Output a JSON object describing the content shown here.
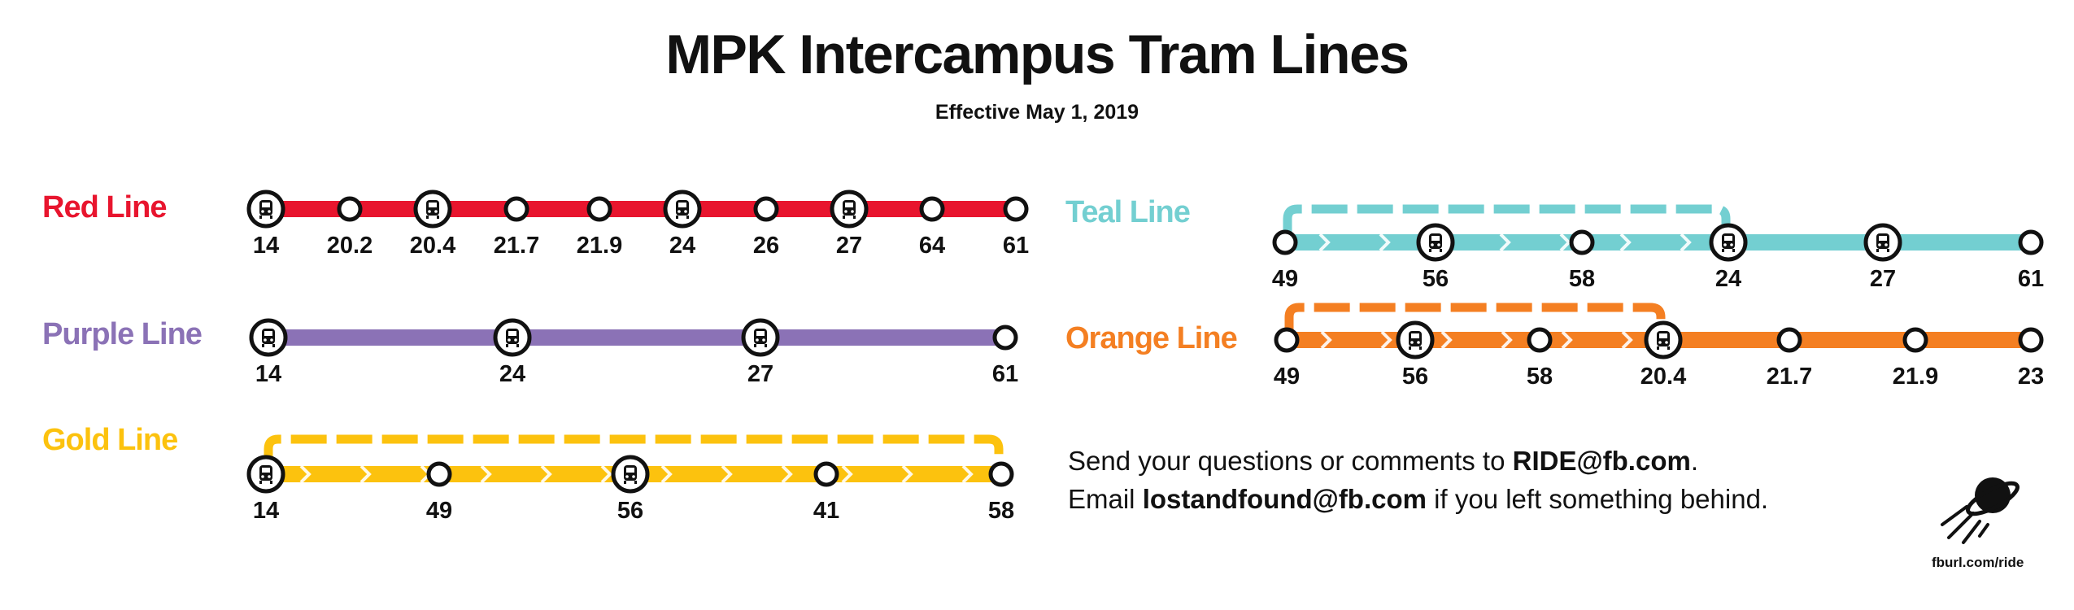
{
  "header": {
    "title": "MPK Intercampus Tram Lines",
    "subtitle": "Effective May 1, 2019"
  },
  "lines": [
    {
      "id": "red",
      "name": "Red Line",
      "color": "#e8152e",
      "stops": [
        {
          "label": "14",
          "type": "hub"
        },
        {
          "label": "20.2",
          "type": "stop"
        },
        {
          "label": "20.4",
          "type": "hub"
        },
        {
          "label": "21.7",
          "type": "stop"
        },
        {
          "label": "21.9",
          "type": "stop"
        },
        {
          "label": "24",
          "type": "hub"
        },
        {
          "label": "26",
          "type": "stop"
        },
        {
          "label": "27",
          "type": "hub"
        },
        {
          "label": "64",
          "type": "stop"
        },
        {
          "label": "61",
          "type": "stop"
        }
      ]
    },
    {
      "id": "purple",
      "name": "Purple Line",
      "color": "#8b72b6",
      "stops": [
        {
          "label": "14",
          "type": "hub"
        },
        {
          "label": "24",
          "type": "hub"
        },
        {
          "label": "27",
          "type": "hub"
        },
        {
          "label": "61",
          "type": "stop"
        }
      ]
    },
    {
      "id": "gold",
      "name": "Gold Line",
      "color": "#fcc20e",
      "stops": [
        {
          "label": "14",
          "type": "hub"
        },
        {
          "label": "49",
          "type": "stop"
        },
        {
          "label": "56",
          "type": "hub"
        },
        {
          "label": "41",
          "type": "stop"
        },
        {
          "label": "58",
          "type": "stop"
        }
      ]
    },
    {
      "id": "teal",
      "name": "Teal Line",
      "color": "#73cfd1",
      "stops": [
        {
          "label": "49",
          "type": "stop"
        },
        {
          "label": "56",
          "type": "hub"
        },
        {
          "label": "58",
          "type": "stop"
        },
        {
          "label": "24",
          "type": "hub"
        },
        {
          "label": "27",
          "type": "hub"
        },
        {
          "label": "61",
          "type": "stop"
        }
      ]
    },
    {
      "id": "orange",
      "name": "Orange Line",
      "color": "#f47f22",
      "stops": [
        {
          "label": "49",
          "type": "stop"
        },
        {
          "label": "56",
          "type": "hub"
        },
        {
          "label": "58",
          "type": "stop"
        },
        {
          "label": "20.4",
          "type": "hub"
        },
        {
          "label": "21.7",
          "type": "stop"
        },
        {
          "label": "21.9",
          "type": "stop"
        },
        {
          "label": "23",
          "type": "stop"
        }
      ]
    }
  ],
  "contact": {
    "line1_prefix": "Send your questions or comments to ",
    "line1_email": "RIDE@fb.com",
    "line1_suffix": ".",
    "line2_prefix": "Email ",
    "line2_email": "lostandfound@fb.com",
    "line2_suffix": " if you left something behind."
  },
  "footer": {
    "link": "fburl.com/ride",
    "logo_icon": "ufo-icon"
  }
}
